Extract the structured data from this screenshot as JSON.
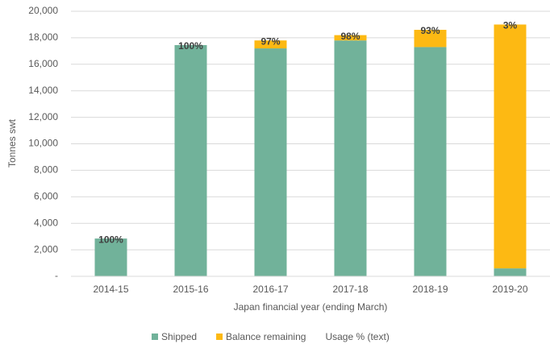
{
  "chart_data": {
    "type": "stacked_bar",
    "categories": [
      "2014-15",
      "2015-16",
      "2016-17",
      "2017-18",
      "2018-19",
      "2019-20"
    ],
    "series": [
      {
        "name": "Shipped",
        "color": "#71b29a",
        "values": [
          2850,
          17450,
          17200,
          17800,
          17300,
          600
        ]
      },
      {
        "name": "Balance remaining",
        "color": "#fdb913",
        "values": [
          0,
          0,
          600,
          400,
          1300,
          18400
        ]
      },
      {
        "name": "Usage % (text)",
        "values": [
          100,
          100,
          97,
          98,
          93,
          3
        ],
        "value_labels": [
          "100%",
          "100%",
          "97%",
          "98%",
          "93%",
          "3%"
        ]
      }
    ],
    "x_label": "Japan financial year (ending March)",
    "y_label": "Tonnes swt",
    "ylim": [
      0,
      20000
    ],
    "yticks": [
      {
        "value": 0,
        "label": "-"
      },
      {
        "value": 2000,
        "label": "2,000"
      },
      {
        "value": 4000,
        "label": "4,000"
      },
      {
        "value": 6000,
        "label": "6,000"
      },
      {
        "value": 8000,
        "label": "8,000"
      },
      {
        "value": 10000,
        "label": "10,000"
      },
      {
        "value": 12000,
        "label": "12,000"
      },
      {
        "value": 14000,
        "label": "14,000"
      },
      {
        "value": 16000,
        "label": "16,000"
      },
      {
        "value": 18000,
        "label": "18,000"
      },
      {
        "value": 20000,
        "label": "20,000"
      }
    ],
    "grid": true,
    "legend": "bottom"
  }
}
